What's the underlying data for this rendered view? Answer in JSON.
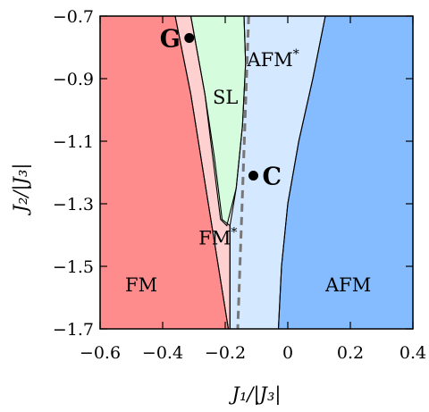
{
  "chart_data": {
    "type": "phase-diagram",
    "xlabel": "J₁/|J₃|",
    "ylabel": "J₂/|J₃|",
    "xlim": [
      -0.6,
      0.4
    ],
    "ylim": [
      -1.7,
      -0.7
    ],
    "x_ticks": [
      -0.6,
      -0.4,
      -0.2,
      0,
      0.2,
      0.4
    ],
    "x_tick_labels": [
      "−0.6",
      "−0.4",
      "−0.2",
      "0",
      "0.2",
      "0.4"
    ],
    "y_ticks": [
      -0.7,
      -0.9,
      -1.1,
      -1.3,
      -1.5,
      -1.7
    ],
    "y_tick_labels": [
      "−0.7",
      "−0.9",
      "−1.1",
      "−1.3",
      "−1.5",
      "−1.7"
    ],
    "regions": [
      {
        "name": "FM",
        "label": "FM",
        "color": "#ff8c8c",
        "polygon": [
          [
            -0.6,
            -0.7
          ],
          [
            -0.36,
            -0.7
          ],
          [
            -0.31,
            -0.95
          ],
          [
            -0.27,
            -1.2
          ],
          [
            -0.23,
            -1.45
          ],
          [
            -0.19,
            -1.7
          ],
          [
            -0.6,
            -1.7
          ]
        ],
        "label_at": [
          -0.52,
          -1.58
        ]
      },
      {
        "name": "FM*",
        "label": "FM",
        "label_sup": "*",
        "color": "#ffd0d0",
        "polygon": [
          [
            -0.36,
            -0.7
          ],
          [
            -0.31,
            -0.7
          ],
          [
            -0.265,
            -0.95
          ],
          [
            -0.235,
            -1.15
          ],
          [
            -0.21,
            -1.35
          ],
          [
            -0.185,
            -1.37
          ],
          [
            -0.185,
            -1.7
          ],
          [
            -0.19,
            -1.7
          ],
          [
            -0.23,
            -1.45
          ],
          [
            -0.27,
            -1.2
          ],
          [
            -0.31,
            -0.95
          ]
        ],
        "label_at": [
          -0.285,
          -1.43
        ]
      },
      {
        "name": "SL",
        "label": "SL",
        "color": "#d4fcdd",
        "polygon": [
          [
            -0.31,
            -0.7
          ],
          [
            -0.14,
            -0.7
          ],
          [
            -0.135,
            -0.85
          ],
          [
            -0.145,
            -1.05
          ],
          [
            -0.165,
            -1.25
          ],
          [
            -0.195,
            -1.37
          ],
          [
            -0.215,
            -1.35
          ],
          [
            -0.24,
            -1.15
          ],
          [
            -0.265,
            -0.95
          ]
        ],
        "label_at": [
          -0.24,
          -0.98
        ]
      },
      {
        "name": "AFM*",
        "label": "AFM",
        "label_sup": "*",
        "color": "#d4e8ff",
        "polygon": [
          [
            -0.14,
            -0.7
          ],
          [
            0.12,
            -0.7
          ],
          [
            0.08,
            -0.9
          ],
          [
            0.035,
            -1.1
          ],
          [
            0.0,
            -1.3
          ],
          [
            -0.02,
            -1.5
          ],
          [
            -0.03,
            -1.7
          ],
          [
            -0.185,
            -1.7
          ],
          [
            -0.185,
            -1.37
          ],
          [
            -0.165,
            -1.25
          ],
          [
            -0.145,
            -1.05
          ],
          [
            -0.135,
            -0.85
          ]
        ],
        "label_at": [
          -0.13,
          -0.86
        ]
      },
      {
        "name": "AFM",
        "label": "AFM",
        "color": "#84bcff",
        "polygon": [
          [
            0.12,
            -0.7
          ],
          [
            0.4,
            -0.7
          ],
          [
            0.4,
            -1.7
          ],
          [
            -0.03,
            -1.7
          ],
          [
            -0.02,
            -1.5
          ],
          [
            0.0,
            -1.3
          ],
          [
            0.035,
            -1.1
          ],
          [
            0.08,
            -0.9
          ]
        ],
        "label_at": [
          0.12,
          -1.58
        ]
      }
    ],
    "dashed_line": [
      [
        -0.125,
        -0.7
      ],
      [
        -0.16,
        -1.7
      ]
    ],
    "points": [
      {
        "name": "G",
        "label": "G",
        "x": -0.315,
        "y": -0.77
      },
      {
        "name": "C",
        "label": "C",
        "x": -0.11,
        "y": -1.21
      }
    ]
  }
}
